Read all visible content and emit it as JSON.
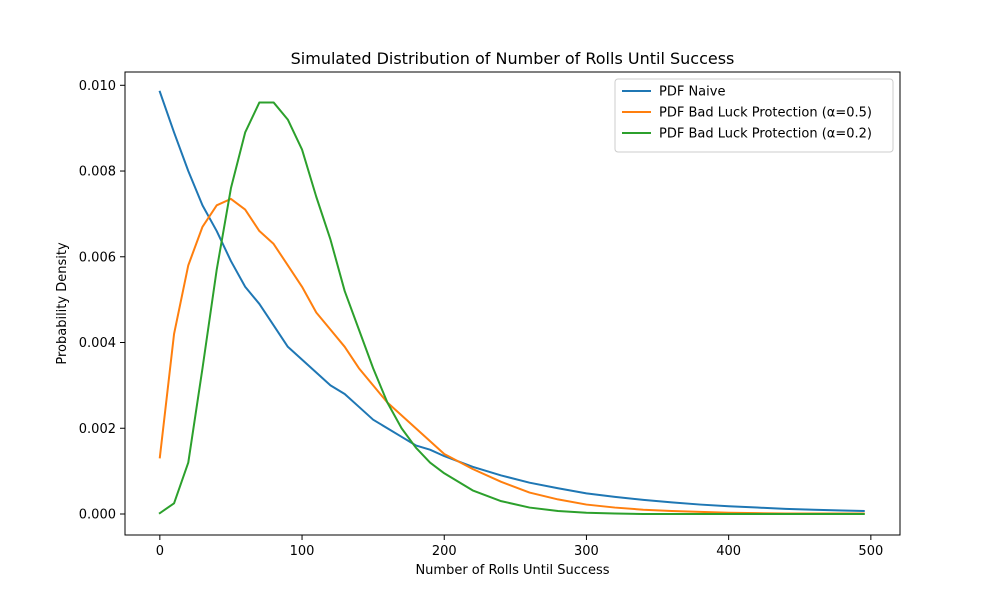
{
  "chart_data": {
    "type": "line",
    "title": "Simulated Distribution of Number of Rolls Until Success",
    "xlabel": "Number of Rolls Until Success",
    "ylabel": "Probability Density",
    "xlim": [
      -24.5,
      520.5
    ],
    "ylim": [
      -0.00049,
      0.01031
    ],
    "xticks": [
      0,
      100,
      200,
      300,
      400,
      500
    ],
    "yticks": [
      0.0,
      0.002,
      0.004,
      0.006,
      0.008,
      0.01
    ],
    "xtick_labels": [
      "0",
      "100",
      "200",
      "300",
      "400",
      "500"
    ],
    "ytick_labels": [
      "0.000",
      "0.002",
      "0.004",
      "0.006",
      "0.008",
      "0.010"
    ],
    "grid": false,
    "legend_position": "top-right",
    "x": [
      0,
      10,
      20,
      30,
      40,
      50,
      60,
      70,
      80,
      90,
      100,
      110,
      120,
      130,
      140,
      150,
      160,
      170,
      180,
      190,
      200,
      220,
      240,
      260,
      280,
      300,
      320,
      340,
      360,
      380,
      400,
      420,
      440,
      460,
      480,
      495
    ],
    "series": [
      {
        "name": "PDF Naive",
        "color": "#1f77b4",
        "values": [
          0.00985,
          0.0089,
          0.008,
          0.0072,
          0.0066,
          0.0059,
          0.0053,
          0.0049,
          0.0044,
          0.0039,
          0.0036,
          0.0033,
          0.003,
          0.0028,
          0.0025,
          0.0022,
          0.002,
          0.0018,
          0.0016,
          0.0015,
          0.00135,
          0.0011,
          0.0009,
          0.00073,
          0.0006,
          0.00048,
          0.0004,
          0.00033,
          0.00027,
          0.00022,
          0.00018,
          0.00015,
          0.00012,
          0.0001,
          8e-05,
          7e-05
        ]
      },
      {
        "name": "PDF Bad Luck Protection (α=0.5)",
        "color": "#ff7f0e",
        "values": [
          0.00132,
          0.0042,
          0.0058,
          0.0067,
          0.0072,
          0.00735,
          0.0071,
          0.0066,
          0.0063,
          0.0058,
          0.0053,
          0.0047,
          0.0043,
          0.0039,
          0.0034,
          0.003,
          0.0026,
          0.0023,
          0.002,
          0.0017,
          0.0014,
          0.00105,
          0.00075,
          0.0005,
          0.00034,
          0.00022,
          0.00015,
          0.0001,
          7e-05,
          5e-05,
          3e-05,
          2e-05,
          1e-05,
          1e-05,
          1e-05,
          1e-05
        ]
      },
      {
        "name": "PDF Bad Luck Protection (α=0.2)",
        "color": "#2ca02c",
        "values": [
          2e-05,
          0.00025,
          0.0012,
          0.0034,
          0.0057,
          0.0076,
          0.0089,
          0.0096,
          0.0096,
          0.0092,
          0.0085,
          0.0074,
          0.0064,
          0.0052,
          0.0043,
          0.0034,
          0.0026,
          0.002,
          0.00155,
          0.0012,
          0.00095,
          0.00055,
          0.0003,
          0.00015,
          7e-05,
          3e-05,
          1e-05,
          0.0,
          0.0,
          0.0,
          0.0,
          0.0,
          0.0,
          0.0,
          0.0,
          0.0
        ]
      }
    ]
  }
}
